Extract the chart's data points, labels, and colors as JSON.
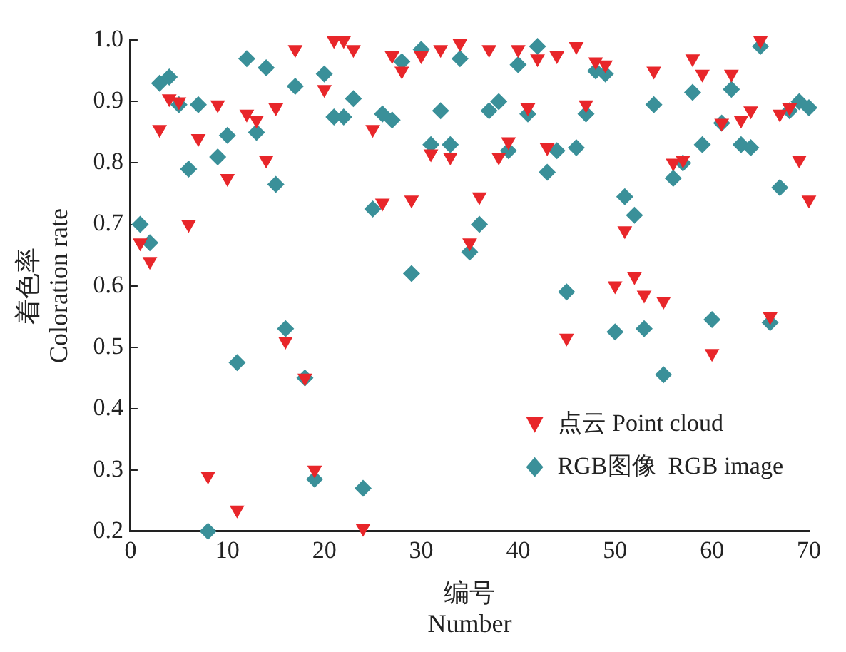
{
  "chart_data": {
    "type": "scatter",
    "xlabel": "编号\nNumber",
    "ylabel": "着色率\nColoration rate",
    "x": [
      1,
      2,
      3,
      4,
      5,
      6,
      7,
      8,
      9,
      10,
      11,
      12,
      13,
      14,
      15,
      16,
      17,
      18,
      19,
      20,
      21,
      22,
      23,
      24,
      25,
      26,
      27,
      28,
      29,
      30,
      31,
      32,
      33,
      34,
      35,
      36,
      37,
      38,
      39,
      40,
      41,
      42,
      43,
      44,
      45,
      46,
      47,
      48,
      49,
      50,
      51,
      52,
      53,
      54,
      55,
      56,
      57,
      58,
      59,
      60,
      61,
      62,
      63,
      64,
      65,
      66,
      67,
      68,
      69,
      70
    ],
    "series": [
      {
        "name": "点云 Point cloud",
        "color": "#e8262a",
        "marker": "triangle",
        "values": [
          0.67,
          0.64,
          0.855,
          0.905,
          0.9,
          0.7,
          0.84,
          0.29,
          0.895,
          0.775,
          0.235,
          0.88,
          0.87,
          0.805,
          0.89,
          0.51,
          0.985,
          0.45,
          0.3,
          0.92,
          1.0,
          1.0,
          0.985,
          0.205,
          0.855,
          0.735,
          0.975,
          0.95,
          0.74,
          0.975,
          0.815,
          0.985,
          0.81,
          0.995,
          0.67,
          0.745,
          0.985,
          0.81,
          0.835,
          0.985,
          0.89,
          0.97,
          0.825,
          0.975,
          0.515,
          0.99,
          0.895,
          0.965,
          0.96,
          0.6,
          0.69,
          0.615,
          0.585,
          0.95,
          0.575,
          0.8,
          0.805,
          0.97,
          0.945,
          0.49,
          0.865,
          0.945,
          0.87,
          0.885,
          1.0,
          0.55,
          0.88,
          0.89,
          0.805,
          0.74
        ]
      },
      {
        "name": "RGB图像  RGB image",
        "color": "#3a9099",
        "marker": "diamond",
        "values": [
          0.7,
          0.67,
          0.93,
          0.94,
          0.895,
          0.79,
          0.895,
          0.2,
          0.81,
          0.845,
          0.475,
          0.97,
          0.85,
          0.955,
          0.765,
          0.53,
          0.925,
          0.45,
          0.285,
          0.945,
          0.875,
          0.875,
          0.905,
          0.27,
          0.725,
          0.88,
          0.87,
          0.965,
          0.62,
          0.985,
          0.83,
          0.885,
          0.83,
          0.97,
          0.655,
          0.7,
          0.885,
          0.9,
          0.82,
          0.96,
          0.88,
          0.99,
          0.785,
          0.82,
          0.59,
          0.825,
          0.88,
          0.95,
          0.945,
          0.525,
          0.745,
          0.715,
          0.53,
          0.895,
          0.455,
          0.775,
          0.8,
          0.915,
          0.83,
          0.545,
          0.865,
          0.92,
          0.83,
          0.825,
          0.99,
          0.54,
          0.76,
          0.885,
          0.9,
          0.89
        ]
      }
    ],
    "xlim": [
      0,
      70
    ],
    "xticks": [
      0,
      10,
      20,
      30,
      40,
      50,
      60,
      70
    ],
    "ylim": [
      0.2,
      1.0
    ],
    "yticks": [
      0.2,
      0.3,
      0.4,
      0.5,
      0.6,
      0.7,
      0.8,
      0.9,
      {
        "value": 1,
        "label": "1.0"
      }
    ],
    "grid": false,
    "legend": "bottom right"
  }
}
